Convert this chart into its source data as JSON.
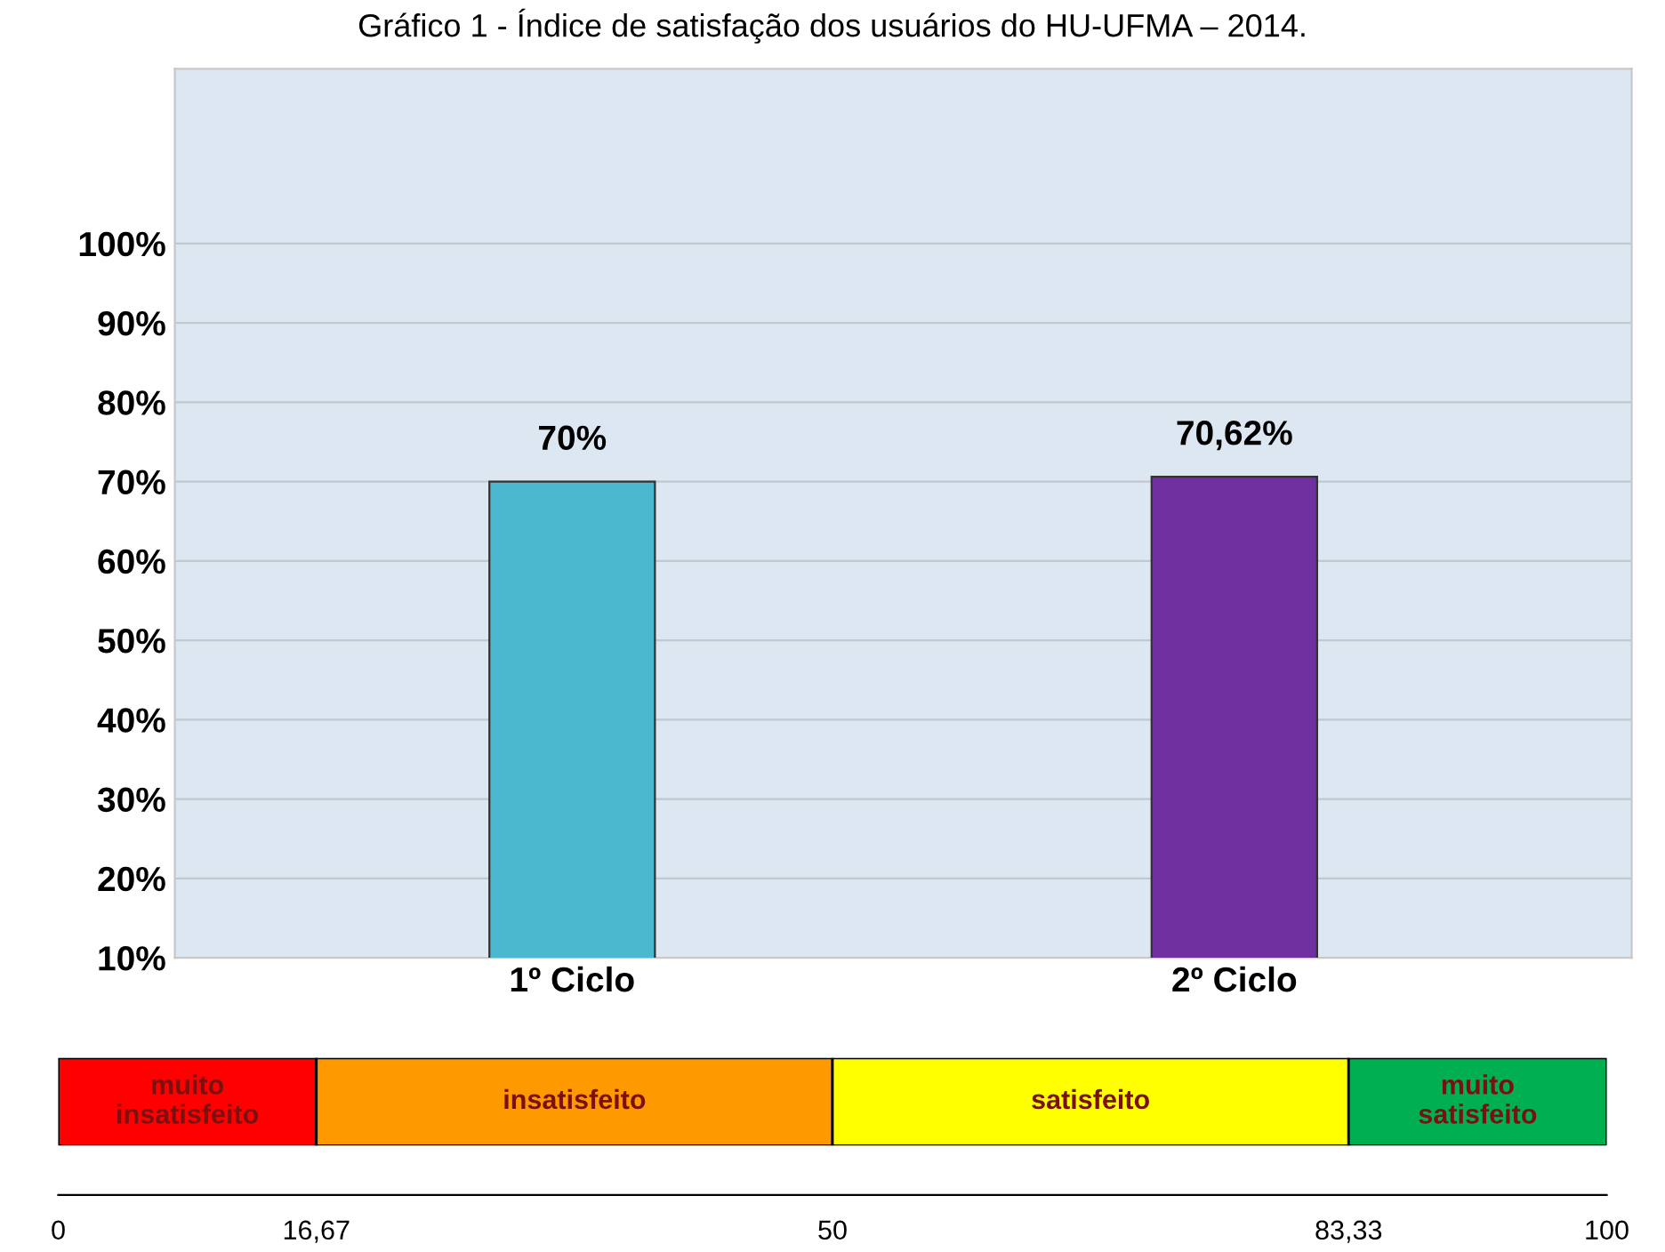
{
  "chart_data": [
    {
      "type": "bar",
      "title": "Gráfico 1 - Índice de satisfação dos usuários do HU-UFMA – 2014.",
      "categories": [
        "1º Ciclo",
        "2º Ciclo"
      ],
      "values": [
        70,
        70.62
      ],
      "colors": [
        "#4bb8d0",
        "#7030a0"
      ],
      "value_labels": [
        "70%",
        "70,62%"
      ],
      "ylim": [
        10,
        122
      ],
      "yticks": [
        {
          "value": 10,
          "label": "10%"
        },
        {
          "value": 20,
          "label": "20%"
        },
        {
          "value": 30,
          "label": "30%"
        },
        {
          "value": 40,
          "label": "40%"
        },
        {
          "value": 50,
          "label": "50%"
        },
        {
          "value": 60,
          "label": "60%"
        },
        {
          "value": 70,
          "label": "70%"
        },
        {
          "value": 80,
          "label": "80%"
        },
        {
          "value": 90,
          "label": "90%"
        },
        {
          "value": 100,
          "label": "100%"
        }
      ],
      "grid": "y"
    },
    {
      "type": "bar",
      "orientation": "horizontal",
      "stacked": true,
      "categories": [
        null
      ],
      "series": [
        {
          "name": "muito\ninsatisfeito",
          "color": "#ff0000",
          "values": [
            16.67
          ]
        },
        {
          "name": "insatisfeito",
          "color": "#ff9900",
          "values": [
            33.33
          ]
        },
        {
          "name": "satisfeito",
          "color": "#ffff00",
          "values": [
            33.33
          ]
        },
        {
          "name": "muito\nsatisfeito",
          "color": "#00b050",
          "values": [
            16.67
          ]
        }
      ],
      "xlim": [
        0,
        100
      ],
      "xticks": [
        0,
        {
          "value": 16.67,
          "label": "16,67"
        },
        50,
        {
          "value": 83.33,
          "label": "83,33"
        },
        100
      ],
      "tick_labels": "x"
    }
  ]
}
